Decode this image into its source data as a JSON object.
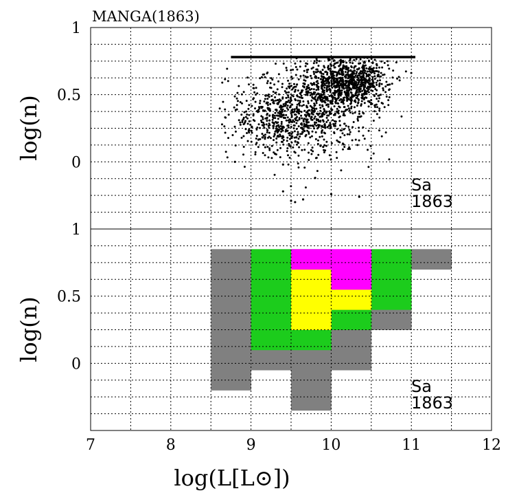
{
  "title": "MANGA(1863)",
  "chart_data": [
    {
      "type": "scatter",
      "panel": "top",
      "title": "MANGA(1863)",
      "xlabel": "log(L[L⊙])",
      "ylabel": "log(n)",
      "xlim": [
        7,
        12
      ],
      "ylim": [
        -0.5,
        1
      ],
      "xticks": [
        7,
        8,
        9,
        10,
        11,
        12
      ],
      "yticks": [
        0,
        0.5,
        1
      ],
      "ytick_labels": [
        "0",
        "0.5",
        "1"
      ],
      "grid": true,
      "annotation": [
        "Sa",
        "1863"
      ],
      "n_points": 1863,
      "ceiling_line": {
        "y": 0.78,
        "x_from": 8.75,
        "x_to": 11.05
      },
      "clusters": [
        {
          "cx": 10.2,
          "cy": 0.6,
          "sx": 0.25,
          "sy": 0.1,
          "n": 900
        },
        {
          "cx": 9.65,
          "cy": 0.35,
          "sx": 0.45,
          "sy": 0.16,
          "n": 800
        },
        {
          "cx": 9.4,
          "cy": 0.3,
          "sx": 0.35,
          "sy": 0.1,
          "n": 163
        }
      ],
      "outliers": [
        [
          9.3,
          0.06
        ],
        [
          9.4,
          -0.02
        ],
        [
          9.8,
          -0.12
        ],
        [
          9.4,
          -0.22
        ],
        [
          9.5,
          -0.29
        ],
        [
          10.35,
          -0.26
        ],
        [
          10.0,
          -0.24
        ],
        [
          9.65,
          -0.28
        ],
        [
          9.55,
          -0.3
        ],
        [
          8.8,
          0.0
        ]
      ]
    },
    {
      "type": "heatmap",
      "panel": "bottom",
      "xlabel": "log(L[L⊙])",
      "ylabel": "log(n)",
      "xlim": [
        7,
        12
      ],
      "ylim": [
        -0.5,
        1
      ],
      "xticks": [
        7,
        8,
        9,
        10,
        11,
        12
      ],
      "xtick_labels": [
        "7",
        "8",
        "9",
        "10",
        "11",
        "12"
      ],
      "yticks": [
        0,
        0.5,
        1
      ],
      "ytick_labels": [
        "0",
        "0.5",
        "1"
      ],
      "grid": true,
      "annotation": [
        "Sa",
        "1863"
      ],
      "levels": {
        "gray": "#808080",
        "green": "#1ccc1c",
        "yellow": "#ffff00",
        "magenta": "#ff00ff"
      },
      "cells": [
        {
          "x0": 8.5,
          "x1": 9.0,
          "y0": -0.2,
          "y1": 0.85,
          "level": "gray"
        },
        {
          "x0": 9.0,
          "x1": 10.0,
          "y0": -0.05,
          "y1": 0.1,
          "level": "gray"
        },
        {
          "x0": 9.5,
          "x1": 10.0,
          "y0": -0.35,
          "y1": -0.05,
          "level": "gray"
        },
        {
          "x0": 10.0,
          "x1": 10.5,
          "y0": -0.05,
          "y1": 0.25,
          "level": "gray"
        },
        {
          "x0": 10.5,
          "x1": 11.0,
          "y0": 0.25,
          "y1": 0.4,
          "level": "gray"
        },
        {
          "x0": 11.0,
          "x1": 11.5,
          "y0": 0.7,
          "y1": 0.85,
          "level": "gray"
        },
        {
          "x0": 9.0,
          "x1": 9.5,
          "y0": 0.1,
          "y1": 0.85,
          "level": "green"
        },
        {
          "x0": 9.5,
          "x1": 10.0,
          "y0": 0.1,
          "y1": 0.25,
          "level": "green"
        },
        {
          "x0": 9.5,
          "x1": 10.0,
          "y0": 0.7,
          "y1": 0.85,
          "level": "green"
        },
        {
          "x0": 10.0,
          "x1": 10.5,
          "y0": 0.25,
          "y1": 0.4,
          "level": "green"
        },
        {
          "x0": 10.5,
          "x1": 11.0,
          "y0": 0.4,
          "y1": 0.85,
          "level": "green"
        },
        {
          "x0": 9.5,
          "x1": 10.0,
          "y0": 0.25,
          "y1": 0.7,
          "level": "yellow"
        },
        {
          "x0": 10.0,
          "x1": 10.5,
          "y0": 0.4,
          "y1": 0.55,
          "level": "yellow"
        },
        {
          "x0": 9.5,
          "x1": 10.5,
          "y0": 0.7,
          "y1": 0.85,
          "level": "magenta"
        },
        {
          "x0": 10.0,
          "x1": 10.5,
          "y0": 0.55,
          "y1": 0.7,
          "level": "magenta"
        }
      ]
    }
  ]
}
